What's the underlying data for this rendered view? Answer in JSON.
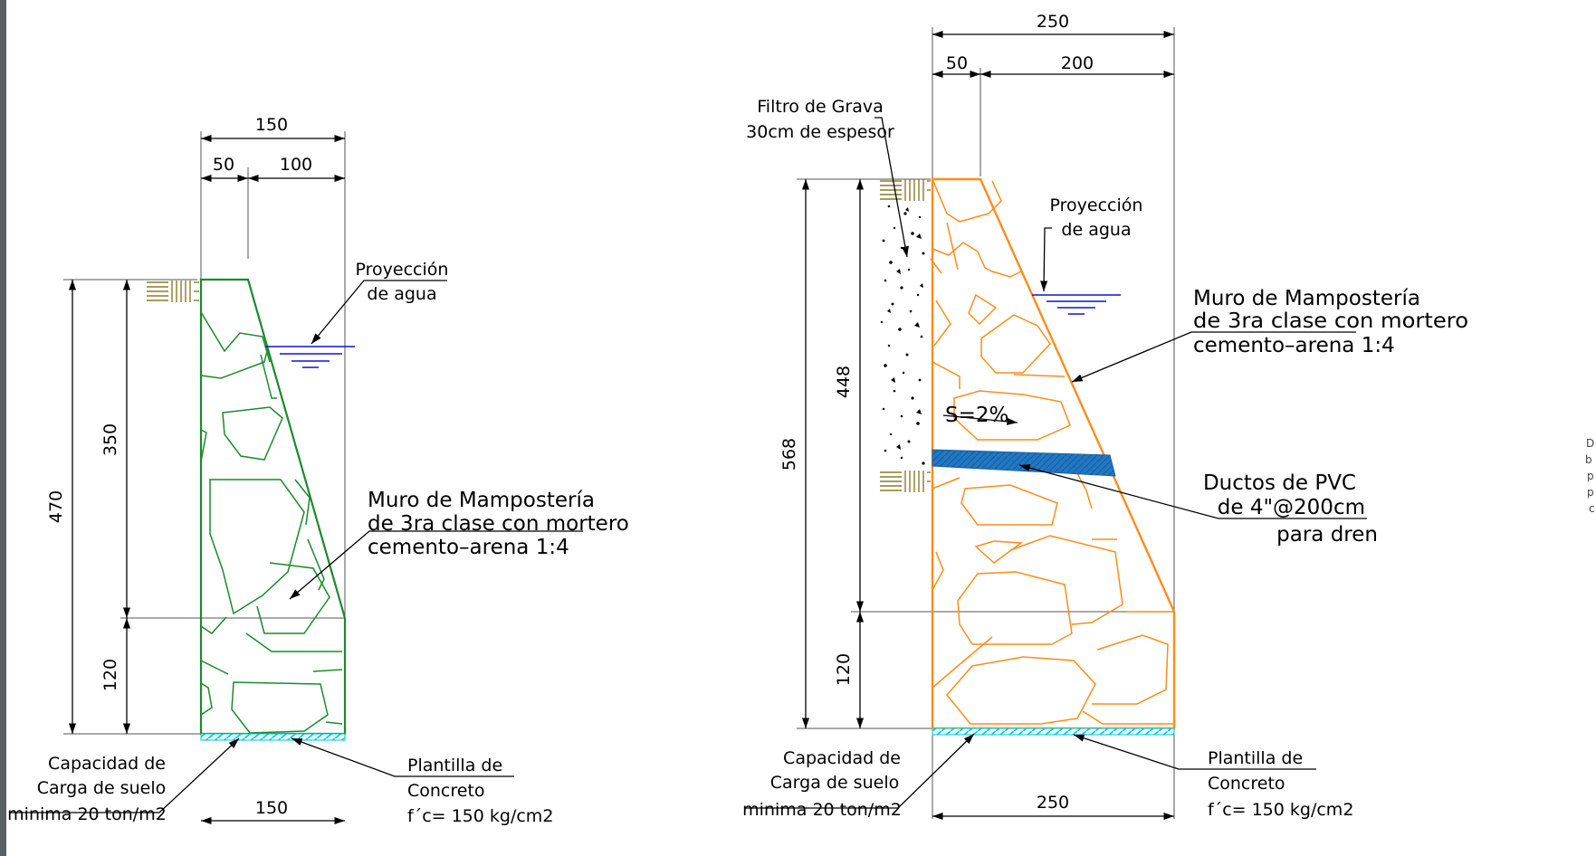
{
  "left_wall": {
    "dims": {
      "top_total": "150",
      "top_a": "50",
      "top_b": "100",
      "height_total": "470",
      "height_upper": "350",
      "height_footing": "120",
      "base": "150"
    },
    "water_label_1": "Proyección",
    "water_label_2": "de agua",
    "wall_label_1": "Muro de Mampostería",
    "wall_label_2": "de 3ra clase con mortero",
    "wall_label_3": "cemento–arena 1:4",
    "soil_label_1": "Capacidad de",
    "soil_label_2": "Carga de suelo",
    "soil_label_3": "minima 20 ton/m2",
    "slab_label_1": "Plantilla de",
    "slab_label_2": "Concreto",
    "slab_label_3": "f´c= 150 kg/cm2"
  },
  "right_wall": {
    "dims": {
      "top_total": "250",
      "top_a": "50",
      "top_b": "200",
      "height_total": "568",
      "height_upper": "448",
      "height_footing": "120",
      "base": "250"
    },
    "filter_label_1": "Filtro de Grava",
    "filter_label_2": "30cm de espesor",
    "water_label_1": "Proyección",
    "water_label_2": "de agua",
    "wall_label_1": "Muro de Mampostería",
    "wall_label_2": "de 3ra clase con mortero",
    "wall_label_3": "cemento–arena 1:4",
    "slope_label": "S=2%",
    "pvc_label_1": "Ductos de PVC",
    "pvc_label_2": "de 4\"@200cm",
    "pvc_label_3": "para dren",
    "soil_label_1": "Capacidad de",
    "soil_label_2": "Carga de suelo",
    "soil_label_3": "minima 20 ton/m2",
    "slab_label_1": "Plantilla de",
    "slab_label_2": "Concreto",
    "slab_label_3": "f´c= 150 kg/cm2"
  },
  "colors": {
    "left_wall": "#1a8a2e",
    "right_wall": "#ff8c1a",
    "water": "#1010d0",
    "pipe": "#1e73be",
    "slab": "#00d0e0",
    "soil_hatch": "#8a7a2a",
    "left_bar": "#5a6068"
  },
  "side_note": [
    "D",
    "b",
    "p",
    "p",
    "c"
  ]
}
